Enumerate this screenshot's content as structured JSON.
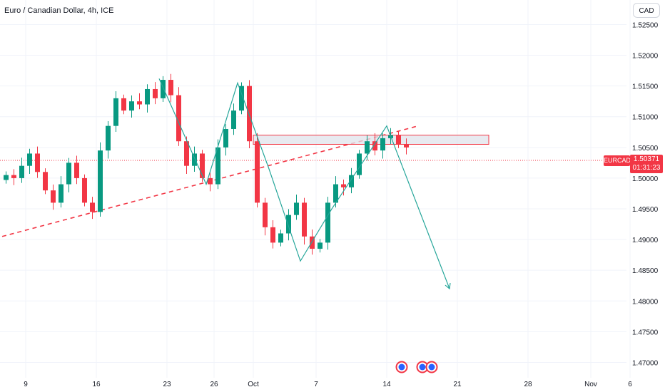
{
  "header": {
    "title": "Euro / Canadian Dollar, 4h, ICE"
  },
  "currency_button": {
    "label": "CAD"
  },
  "last_price": {
    "symbol": "EURCAD",
    "value": "1.50371",
    "countdown": "01:31:23"
  },
  "colors": {
    "up": "#089981",
    "down": "#f23645",
    "pattern": "#26a69a",
    "trendline": "#f23645",
    "zone_fill": "#e0e3eb",
    "zone_border": "#f23645"
  },
  "chart_data": {
    "type": "candlestick",
    "ylim": [
      1.4675,
      1.529
    ],
    "y_ticks": [
      "1.52500",
      "1.52000",
      "1.51500",
      "1.51000",
      "1.50500",
      "1.50000",
      "1.49500",
      "1.49000",
      "1.48500",
      "1.48000",
      "1.47500",
      "1.47000"
    ],
    "y_tick_values": [
      1.525,
      1.52,
      1.515,
      1.51,
      1.505,
      1.5,
      1.495,
      1.49,
      1.485,
      1.48,
      1.475,
      1.47
    ],
    "x_ticks": [
      "9",
      "16",
      "23",
      "26",
      "Oct",
      "7",
      "14",
      "21",
      "28",
      "Nov",
      "6"
    ],
    "x_tick_slots": [
      3,
      12,
      21,
      27,
      32,
      40,
      49,
      58,
      67,
      75,
      80
    ],
    "grid": true,
    "close_values": [
      1.5005,
      1.5,
      1.502,
      1.504,
      1.501,
      1.498,
      1.496,
      1.499,
      1.5025,
      1.5,
      1.496,
      1.4945,
      1.5045,
      1.5085,
      1.513,
      1.511,
      1.5125,
      1.512,
      1.5145,
      1.513,
      1.516,
      1.5135,
      1.506,
      1.502,
      1.504,
      1.5,
      1.499,
      1.505,
      1.508,
      1.511,
      1.515,
      1.506,
      1.496,
      1.492,
      1.4895,
      1.491,
      1.494,
      1.496,
      1.4905,
      1.4885,
      1.4895,
      1.496,
      1.499,
      1.4985,
      1.5005,
      1.504,
      1.506,
      1.5045,
      1.5065,
      1.507,
      1.5055,
      1.505
    ],
    "trendline": {
      "start": [
        0,
        1.4905
      ],
      "end": [
        53,
        1.5085
      ]
    },
    "resistance_zone": {
      "x": [
        32,
        62
      ],
      "y": [
        1.5055,
        1.507
      ]
    },
    "pattern_path": [
      [
        20,
        1.5162
      ],
      [
        26,
        1.499
      ],
      [
        30,
        1.5155
      ],
      [
        34,
        1.5015
      ],
      [
        38,
        1.4865
      ],
      [
        42,
        1.495
      ],
      [
        49,
        1.5085
      ],
      [
        57,
        1.482
      ]
    ]
  }
}
